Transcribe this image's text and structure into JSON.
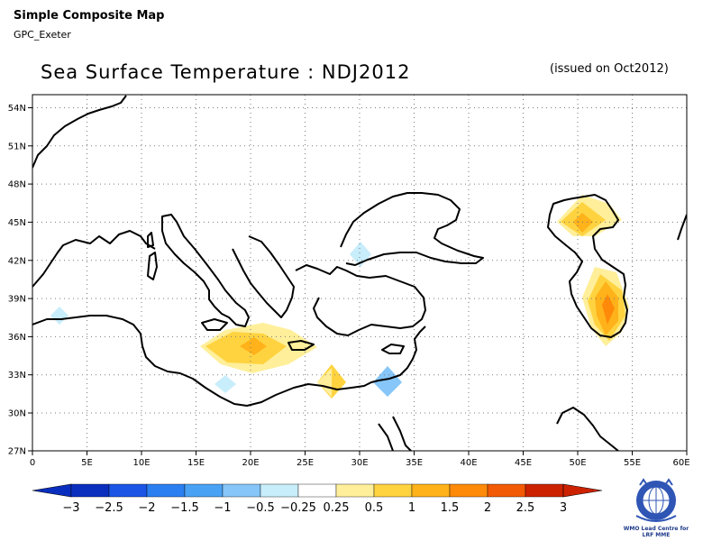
{
  "header": {
    "title": "Simple Composite Map",
    "subtitle": "GPC_Exeter"
  },
  "map": {
    "title": "Sea Surface Temperature : NDJ2012",
    "issued": "(issued on Oct2012)",
    "lat_labels": [
      "54N",
      "51N",
      "48N",
      "45N",
      "42N",
      "39N",
      "36N",
      "33N",
      "30N",
      "27N"
    ],
    "lon_labels": [
      "0",
      "5E",
      "10E",
      "15E",
      "20E",
      "25E",
      "30E",
      "35E",
      "40E",
      "45E",
      "50E",
      "55E",
      "60E"
    ],
    "lat_range": [
      27,
      55
    ],
    "lon_range": [
      0,
      60
    ],
    "grid": "dotted"
  },
  "colorbar": {
    "labels": [
      "−3",
      "−2.5",
      "−2",
      "−1.5",
      "−1",
      "−0.5",
      "−0.25",
      "0.25",
      "0.5",
      "1",
      "1.5",
      "2",
      "2.5",
      "3"
    ],
    "colors": [
      "#0a2fbf",
      "#1a55e6",
      "#2b7ff0",
      "#4aa2f5",
      "#86c6f8",
      "#c8edfb",
      "#ffffff",
      "#ffef9a",
      "#ffd340",
      "#ffb21a",
      "#ff8a0a",
      "#f25a05",
      "#cc2200"
    ]
  },
  "logo": {
    "text_line1": "WMO Lead Centre for",
    "text_line2": "LRF MME"
  }
}
